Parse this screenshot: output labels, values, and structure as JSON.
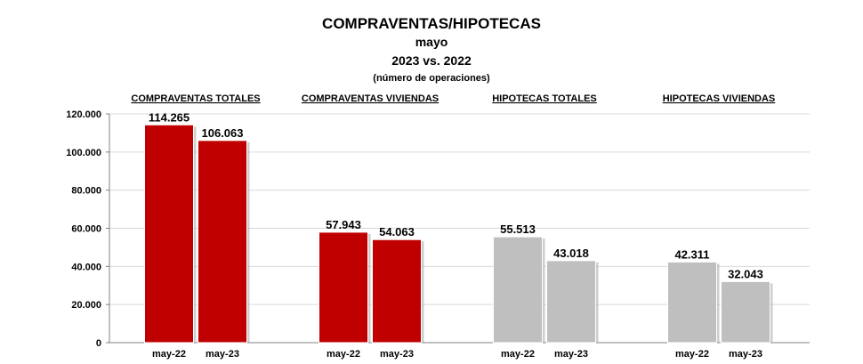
{
  "header": {
    "title": "COMPRAVENTAS/HIPOTECAS",
    "subtitle1": "mayo",
    "subtitle2": "2023 vs. 2022",
    "subtitle3": "(número de operaciones)"
  },
  "colors": {
    "compraventas": "#c00000",
    "hipotecas": "#bfbfbf",
    "grid": "#d9d9d9",
    "axis": "#808080"
  },
  "chart_data": {
    "type": "bar",
    "title": "COMPRAVENTAS/HIPOTECAS",
    "xlabel": "",
    "ylabel": "",
    "ylim": [
      0,
      120000
    ],
    "yticks": [
      0,
      20000,
      40000,
      60000,
      80000,
      100000,
      120000
    ],
    "ytick_labels": [
      "0",
      "20.000",
      "40.000",
      "60.000",
      "80.000",
      "100.000",
      "120.000"
    ],
    "grid": true,
    "legend": "none",
    "groups": [
      {
        "label": "COMPRAVENTAS TOTALES",
        "color_key": "compraventas",
        "bars": [
          {
            "category": "may-22",
            "value": 114265,
            "label": "114.265"
          },
          {
            "category": "may-23",
            "value": 106063,
            "label": "106.063"
          }
        ]
      },
      {
        "label": "COMPRAVENTAS VIVIENDAS",
        "color_key": "compraventas",
        "bars": [
          {
            "category": "may-22",
            "value": 57943,
            "label": "57.943"
          },
          {
            "category": "may-23",
            "value": 54063,
            "label": "54.063"
          }
        ]
      },
      {
        "label": "HIPOTECAS TOTALES",
        "color_key": "hipotecas",
        "bars": [
          {
            "category": "may-22",
            "value": 55513,
            "label": "55.513"
          },
          {
            "category": "may-23",
            "value": 43018,
            "label": "43.018"
          }
        ]
      },
      {
        "label": "HIPOTECAS VIVIENDAS",
        "color_key": "hipotecas",
        "bars": [
          {
            "category": "may-22",
            "value": 42311,
            "label": "42.311"
          },
          {
            "category": "may-23",
            "value": 32043,
            "label": "32.043"
          }
        ]
      }
    ]
  }
}
